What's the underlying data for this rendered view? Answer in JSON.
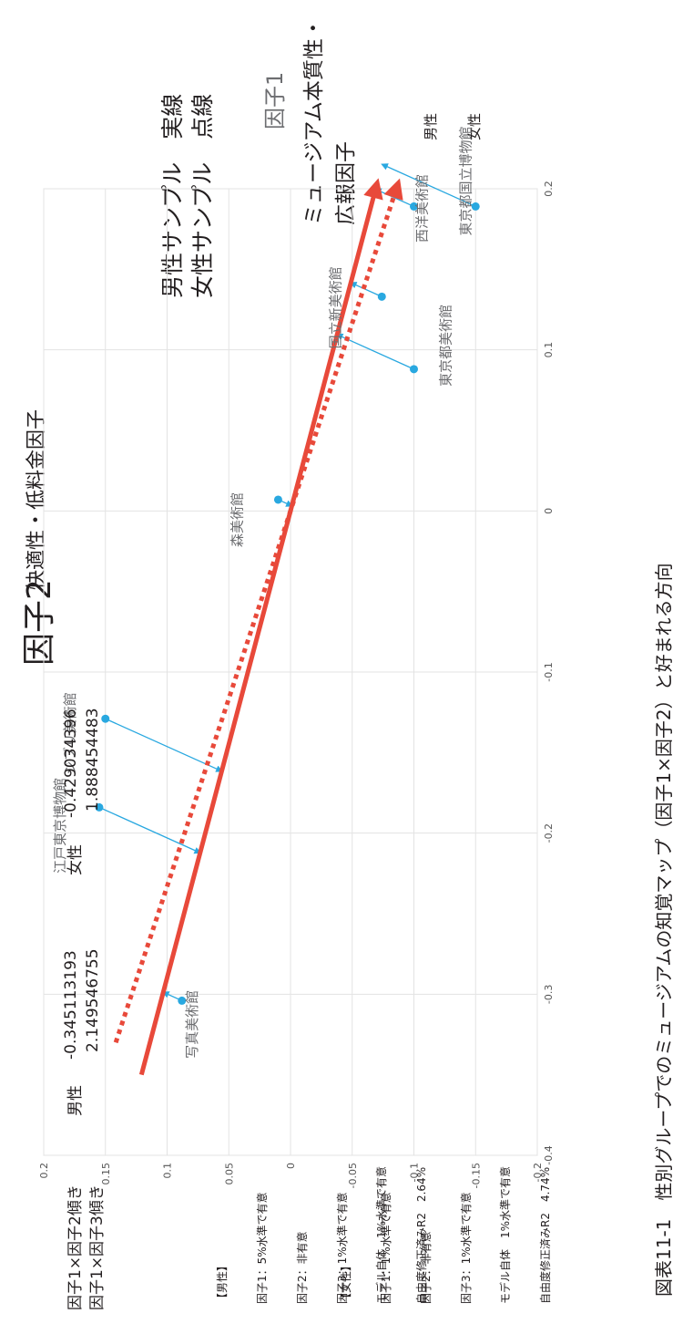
{
  "chart_data": {
    "type": "scatter",
    "title": "図表11-1　性別グループでのミュージアムの知覚マップ（因子1×因子2）と好まれる方向",
    "xlabel": "因子1",
    "ylabel": "因子2",
    "xlabel_sub": "ミュージアム本質性・広報因子",
    "ylabel_sub": "快適性・低料金因子",
    "xlim": [
      -0.4,
      0.2
    ],
    "ylim": [
      -0.2,
      0.2
    ],
    "xticks": [
      "-0.4",
      "-0.3",
      "-0.2",
      "-0.1",
      "0",
      "0.1",
      "0.2"
    ],
    "yticks": [
      "-0.2",
      "-0.15",
      "-0.1",
      "-0.05",
      "0",
      "0.05",
      "0.1",
      "0.15",
      "0.2"
    ],
    "grid": true,
    "points": [
      {
        "label": "写真美術館",
        "x": -0.304,
        "y": 0.088
      },
      {
        "label": "江戸東京博物館",
        "x": -0.184,
        "y": 0.155
      },
      {
        "label": "ジブリ美術館",
        "x": -0.129,
        "y": 0.15
      },
      {
        "label": "森美術館",
        "x": 0.007,
        "y": 0.01
      },
      {
        "label": "東京都美術館",
        "x": 0.088,
        "y": -0.1
      },
      {
        "label": "国立新美術館",
        "x": 0.133,
        "y": -0.074
      },
      {
        "label": "東京都国立博物館",
        "x": 0.189,
        "y": -0.1
      },
      {
        "label": "西洋美術館",
        "x": 0.189,
        "y": -0.15
      }
    ],
    "series": [
      {
        "name": "男性",
        "style": "実線",
        "slope": -0.345113193,
        "x": [
          -0.35,
          0.2
        ],
        "color": "#e8493a"
      },
      {
        "name": "女性",
        "style": "点線",
        "slope": -0.429034396,
        "x": [
          -0.33,
          0.2
        ],
        "color": "#e8493a"
      }
    ],
    "legend": {
      "male": "男性サンプル　実線",
      "female": "女性サンプル　点線"
    }
  },
  "labels": {
    "factor2_head": "因子2",
    "factor2_desc": "快適性・低料金因子",
    "factor1_head": "因子1",
    "factor1_desc_1": "ミュージアム本質性・",
    "factor1_desc_2": "広報因子",
    "legend_line1": "男性サンプル　実線",
    "legend_line2": "女性サンプル　点線",
    "arrow_male": "男性",
    "arrow_female": "女性",
    "caption": "図表11-1　性別グループでのミュージアムの知覚マップ（因子1×因子2）と好まれる方向"
  },
  "stats_male": {
    "title": "【男性】",
    "f1": "因子1：5%水準で有意",
    "f2": "因子2：非有意",
    "f3": "因子3：1%水準で有意",
    "model": "モデル自体　1%水準で有意",
    "r2": "自由度修正済みR2　2.64%"
  },
  "stats_female": {
    "title": "【女性】",
    "f1": "因子1：1%水準で有意",
    "f2": "因子2：非有意",
    "f3": "因子3：1%水準で有意",
    "model": "モデル自体　1%水準で有意",
    "r2": "自由度修正済みR2　4.74%"
  },
  "slopes": {
    "row1_label": "因子1×因子2傾き",
    "row2_label": "因子1×因子3傾き",
    "male_head": "男性",
    "female_head": "女性",
    "male_12": "-0.345113193",
    "male_13": "2.149546755",
    "female_12": "-0.429034396",
    "female_13": "1.888454483"
  }
}
